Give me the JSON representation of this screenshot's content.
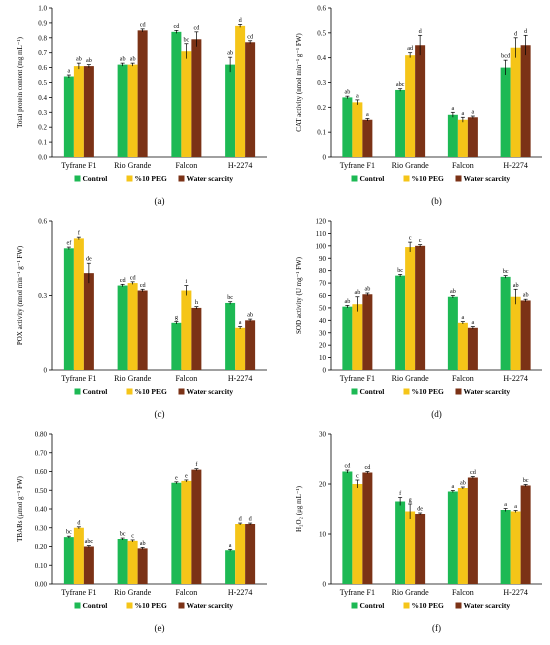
{
  "colors": {
    "Control": "#1db954",
    "%10 PEG": "#f5c518",
    "Water scarcity": "#7b3216",
    "axis": "#000000"
  },
  "chart_data": [
    {
      "panel_label": "(a)",
      "type": "bar",
      "ylabel": "Total protein content (mg mL⁻¹)",
      "ylim": [
        0,
        1.0
      ],
      "yticks": [
        "0.0",
        "0.1",
        "0.2",
        "0.3",
        "0.4",
        "0.5",
        "0.6",
        "0.7",
        "0.8",
        "0.9",
        "1.0"
      ],
      "ytick_values": [
        0,
        0.1,
        0.2,
        0.3,
        0.4,
        0.5,
        0.6,
        0.7,
        0.8,
        0.9,
        1.0
      ],
      "categories": [
        "Tyfrane F1",
        "Rio Grande",
        "Falcon",
        "H-2274"
      ],
      "series": [
        {
          "name": "Control",
          "values": [
            0.54,
            0.62,
            0.84,
            0.62
          ],
          "errors": [
            0.01,
            0.01,
            0.01,
            0.05
          ],
          "letters": [
            "a",
            "ab",
            "cd",
            "ab"
          ]
        },
        {
          "name": "%10 PEG",
          "values": [
            0.61,
            0.62,
            0.71,
            0.88
          ],
          "errors": [
            0.02,
            0.01,
            0.05,
            0.01
          ],
          "letters": [
            "ab",
            "ab",
            "bc",
            "d"
          ]
        },
        {
          "name": "Water scarcity",
          "values": [
            0.61,
            0.85,
            0.79,
            0.77
          ],
          "errors": [
            0.01,
            0.01,
            0.05,
            0.01
          ],
          "letters": [
            "ab",
            "cd",
            "cd",
            "cd"
          ]
        }
      ]
    },
    {
      "panel_label": "(b)",
      "type": "bar",
      "ylabel": "CAT activity (nmol min⁻¹ g⁻¹ FW)",
      "ylim": [
        0,
        0.6
      ],
      "yticks": [
        "0",
        "0.1",
        "0.2",
        "0.3",
        "0.4",
        "0.5",
        "0.6"
      ],
      "ytick_values": [
        0,
        0.1,
        0.2,
        0.3,
        0.4,
        0.5,
        0.6
      ],
      "categories": [
        "Tyfrane F1",
        "Rio Grande",
        "Falcon",
        "H-2274"
      ],
      "series": [
        {
          "name": "Control",
          "values": [
            0.24,
            0.27,
            0.17,
            0.36
          ],
          "errors": [
            0.005,
            0.005,
            0.01,
            0.03
          ],
          "letters": [
            "ab",
            "abc",
            "a",
            "bcd"
          ]
        },
        {
          "name": "%10 PEG",
          "values": [
            0.22,
            0.41,
            0.15,
            0.44
          ],
          "errors": [
            0.01,
            0.01,
            0.01,
            0.04
          ],
          "letters": [
            "a",
            "ad",
            "a",
            "d"
          ]
        },
        {
          "name": "Water scarcity",
          "values": [
            0.15,
            0.45,
            0.16,
            0.45
          ],
          "errors": [
            0.005,
            0.04,
            0.005,
            0.04
          ],
          "letters": [
            "a",
            "d",
            "a",
            "d"
          ]
        }
      ]
    },
    {
      "panel_label": "(c)",
      "type": "bar",
      "ylabel": "POX activity (nmol min⁻¹ g⁻¹ FW)",
      "ylim": [
        0,
        0.6
      ],
      "yticks": [
        "0",
        "0.3",
        "0.6"
      ],
      "ytick_values": [
        0,
        0.3,
        0.6
      ],
      "categories": [
        "Tyfrane F1",
        "Rio Grande",
        "Falcon",
        "H-2274"
      ],
      "series": [
        {
          "name": "Control",
          "values": [
            0.49,
            0.34,
            0.19,
            0.27
          ],
          "errors": [
            0.005,
            0.005,
            0.005,
            0.005
          ],
          "letters": [
            "ef",
            "cd",
            "g",
            "bc"
          ]
        },
        {
          "name": "%10 PEG",
          "values": [
            0.53,
            0.35,
            0.32,
            0.17
          ],
          "errors": [
            0.005,
            0.005,
            0.02,
            0.005
          ],
          "letters": [
            "f",
            "cd",
            "i",
            "a"
          ]
        },
        {
          "name": "Water scarcity",
          "values": [
            0.39,
            0.32,
            0.25,
            0.2
          ],
          "errors": [
            0.04,
            0.005,
            0.005,
            0.005
          ],
          "letters": [
            "de",
            "cd",
            "h",
            "ab"
          ]
        }
      ]
    },
    {
      "panel_label": "(d)",
      "type": "bar",
      "ylabel": "SOD activity (U mg⁻¹ FW)",
      "ylim": [
        0,
        120
      ],
      "yticks": [
        "0",
        "10",
        "20",
        "30",
        "40",
        "50",
        "60",
        "70",
        "80",
        "90",
        "100",
        "110",
        "120"
      ],
      "ytick_values": [
        0,
        10,
        20,
        30,
        40,
        50,
        60,
        70,
        80,
        90,
        100,
        110,
        120
      ],
      "categories": [
        "Tyfrane F1",
        "Rio Grande",
        "Falcon",
        "H-2274"
      ],
      "series": [
        {
          "name": "Control",
          "values": [
            51,
            76,
            59,
            75
          ],
          "errors": [
            1,
            1,
            1,
            1
          ],
          "letters": [
            "ab",
            "bc",
            "ab",
            "bc"
          ]
        },
        {
          "name": "%10 PEG",
          "values": [
            53,
            99,
            38,
            59
          ],
          "errors": [
            6,
            4,
            1,
            6
          ],
          "letters": [
            "ab",
            "c",
            "a",
            "ab"
          ]
        },
        {
          "name": "Water scarcity",
          "values": [
            61,
            100,
            34,
            56
          ],
          "errors": [
            1,
            1,
            1,
            1
          ],
          "letters": [
            "ab",
            "c",
            "a",
            "ab"
          ]
        }
      ]
    },
    {
      "panel_label": "(e)",
      "type": "bar",
      "ylabel": "TBARs (μmol g⁻¹ FW)",
      "ylim": [
        0,
        0.8
      ],
      "yticks": [
        "0.00",
        "0.10",
        "0.20",
        "0.30",
        "0.40",
        "0.50",
        "0.60",
        "0.70",
        "0.80"
      ],
      "ytick_values": [
        0,
        0.1,
        0.2,
        0.3,
        0.4,
        0.5,
        0.6,
        0.7,
        0.8
      ],
      "categories": [
        "Tyfrane F1",
        "Rio Grande",
        "Falcon",
        "H-2274"
      ],
      "series": [
        {
          "name": "Control",
          "values": [
            0.25,
            0.24,
            0.54,
            0.18
          ],
          "errors": [
            0.005,
            0.005,
            0.005,
            0.005
          ],
          "letters": [
            "bc",
            "bc",
            "e",
            "a"
          ]
        },
        {
          "name": "%10 PEG",
          "values": [
            0.3,
            0.23,
            0.55,
            0.32
          ],
          "errors": [
            0.005,
            0.005,
            0.005,
            0.005
          ],
          "letters": [
            "d",
            "c",
            "e",
            "d"
          ]
        },
        {
          "name": "Water scarcity",
          "values": [
            0.2,
            0.19,
            0.61,
            0.32
          ],
          "errors": [
            0.005,
            0.005,
            0.005,
            0.005
          ],
          "letters": [
            "abc",
            "ab",
            "f",
            "d"
          ]
        }
      ]
    },
    {
      "panel_label": "(f)",
      "type": "bar",
      "ylabel": "H₂O₂ (μg mL⁻¹)",
      "ylim": [
        0,
        30
      ],
      "yticks": [
        "0",
        "10",
        "20",
        "30"
      ],
      "ytick_values": [
        0,
        10,
        20,
        30
      ],
      "categories": [
        "Tyfrane F1",
        "Rio Grande",
        "Falcon",
        "H-2274"
      ],
      "series": [
        {
          "name": "Control",
          "values": [
            22.5,
            16.5,
            18.5,
            14.8
          ],
          "errors": [
            0.3,
            0.8,
            0.2,
            0.3
          ],
          "letters": [
            "cd",
            "f",
            "a",
            "a"
          ]
        },
        {
          "name": "%10 PEG",
          "values": [
            20.0,
            14.5,
            19.2,
            14.5
          ],
          "errors": [
            0.8,
            1.5,
            0.2,
            0.2
          ],
          "letters": [
            "c",
            "g",
            "ab",
            "a"
          ]
        },
        {
          "name": "Water scarcity",
          "values": [
            22.3,
            14.0,
            21.3,
            19.7
          ],
          "errors": [
            0.2,
            0.2,
            0.2,
            0.2
          ],
          "letters": [
            "cd",
            "de",
            "cd",
            "bc"
          ]
        }
      ]
    }
  ],
  "legend": [
    "Control",
    "%10 PEG",
    "Water scarcity"
  ]
}
